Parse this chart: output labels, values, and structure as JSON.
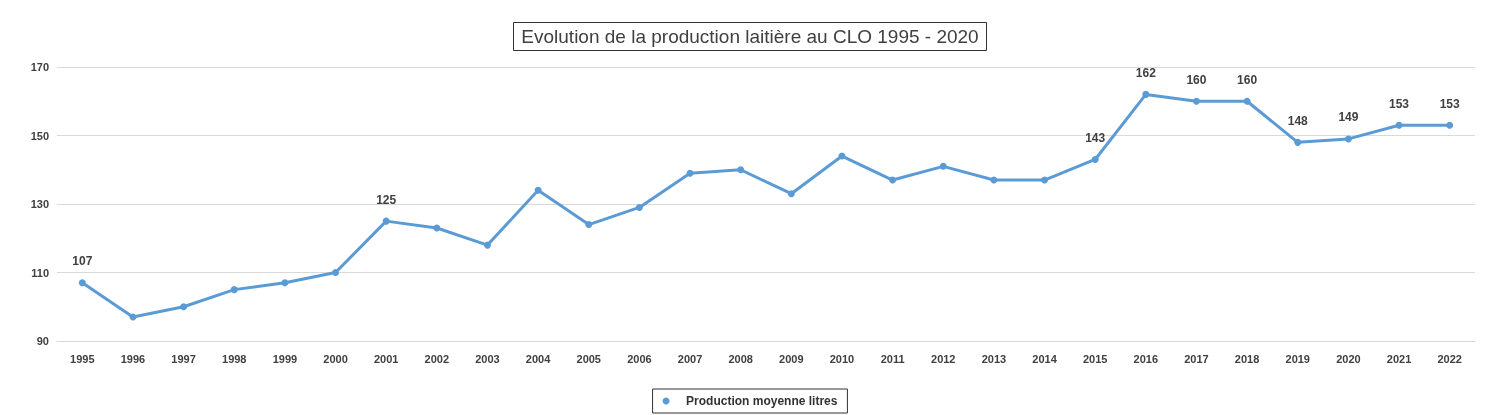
{
  "chart_data": {
    "type": "line",
    "title": "Evolution de la production laitière au CLO 1995 - 2020",
    "categories": [
      "1995",
      "1996",
      "1997",
      "1998",
      "1999",
      "2000",
      "2001",
      "2002",
      "2003",
      "2004",
      "2005",
      "2006",
      "2007",
      "2008",
      "2009",
      "2010",
      "2011",
      "2012",
      "2013",
      "2014",
      "2015",
      "2016",
      "2017",
      "2018",
      "2019",
      "2020",
      "2021",
      "2022"
    ],
    "series": [
      {
        "name": "Production moyenne litres",
        "color": "#5b9bd5",
        "values": [
          107,
          97,
          100,
          105,
          107,
          110,
          125,
          123,
          118,
          134,
          124,
          129,
          139,
          140,
          133,
          144,
          137,
          141,
          137,
          137,
          143,
          162,
          160,
          160,
          148,
          149,
          153,
          153
        ],
        "value_labels": [
          "107",
          null,
          null,
          null,
          null,
          null,
          "125",
          null,
          null,
          null,
          null,
          null,
          null,
          null,
          null,
          null,
          null,
          null,
          null,
          null,
          "143",
          "162",
          "160",
          "160",
          "148",
          "149",
          "153",
          "153"
        ]
      }
    ],
    "ylim": [
      90,
      170
    ],
    "yticks": [
      90,
      110,
      130,
      150,
      170
    ],
    "grid": "y",
    "legend": "bottom",
    "marker": "circle",
    "line_style": "solid"
  }
}
